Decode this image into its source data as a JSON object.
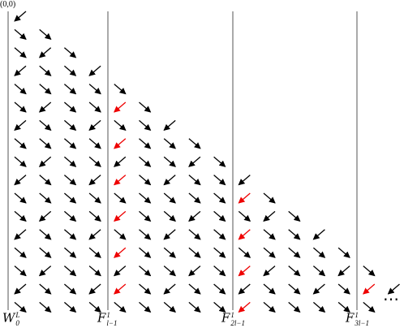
{
  "origin_label": "(0,0)",
  "labels": [
    {
      "symbol": "W",
      "sub": "0",
      "sup": "L"
    },
    {
      "symbol": "F",
      "sub": "l−1",
      "sup": "1"
    },
    {
      "symbol": "F",
      "sub": "2l−1",
      "sup": "1"
    },
    {
      "symbol": "F",
      "sub": "3l−1",
      "sup": "1"
    }
  ],
  "ellipsis": "⋯"
}
